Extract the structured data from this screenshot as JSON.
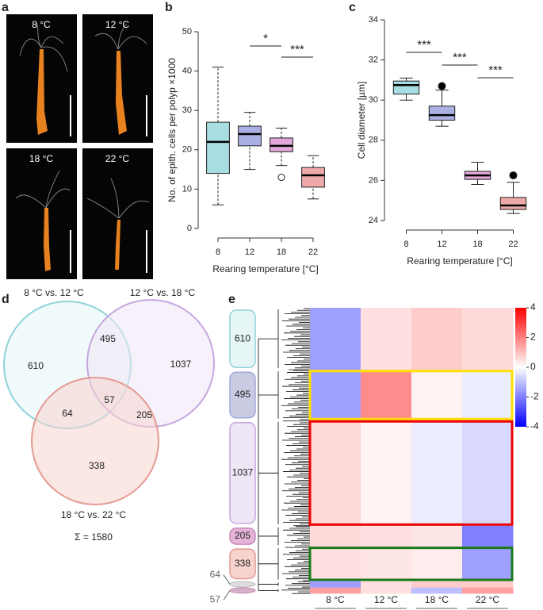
{
  "panels": [
    "a",
    "b",
    "c",
    "d",
    "e"
  ],
  "photos": [
    "8 °C",
    "12 °C",
    "18 °C",
    "22 °C"
  ],
  "chart_data": [
    {
      "type": "box",
      "categories": [
        "8",
        "12",
        "18",
        "22"
      ],
      "boxes": [
        {
          "low": 6,
          "q1": 14,
          "median": 22,
          "q3": 27,
          "high": 41,
          "outliers": []
        },
        {
          "low": 15,
          "q1": 21,
          "median": 24,
          "q3": 26,
          "high": 29.5,
          "outliers": []
        },
        {
          "low": 16,
          "q1": 19.5,
          "median": 21,
          "q3": 23,
          "high": 25.5,
          "outliers": [
            13
          ]
        },
        {
          "low": 7.5,
          "q1": 10.5,
          "median": 13.5,
          "q3": 15.5,
          "high": 18.5,
          "outliers": []
        }
      ],
      "colors": [
        "#a8dde2",
        "#aab0e2",
        "#e2a8da",
        "#eeaaaa"
      ],
      "whisker_style": "dashed",
      "outlier_style": "open",
      "ylim": [
        0,
        50
      ],
      "yticks": [
        0,
        10,
        20,
        30,
        40,
        50
      ],
      "ylabel": "No. of epith. cells per polyp ×1000",
      "xlabel": "Rearing temperature [°C]",
      "annotations": [
        "*",
        "***"
      ]
    },
    {
      "type": "box",
      "categories": [
        "8",
        "12",
        "18",
        "22"
      ],
      "boxes": [
        {
          "low": 30.0,
          "q1": 30.3,
          "median": 30.75,
          "q3": 30.95,
          "high": 31.1,
          "outliers": []
        },
        {
          "low": 28.7,
          "q1": 29.0,
          "median": 29.25,
          "q3": 29.7,
          "high": 30.5,
          "outliers": [
            30.7
          ]
        },
        {
          "low": 25.8,
          "q1": 26.05,
          "median": 26.25,
          "q3": 26.45,
          "high": 26.9,
          "outliers": []
        },
        {
          "low": 24.35,
          "q1": 24.55,
          "median": 24.75,
          "q3": 25.15,
          "high": 25.9,
          "outliers": [
            26.25
          ]
        }
      ],
      "colors": [
        "#a8dde2",
        "#aab0e2",
        "#e2a8da",
        "#eeaaaa"
      ],
      "whisker_style": "solid",
      "outlier_style": "filled",
      "ylim": [
        24,
        34
      ],
      "yticks": [
        24,
        26,
        28,
        30,
        32,
        34
      ],
      "ylabel": "Cell diameter [µm]",
      "xlabel": "Rearing temperature [°C]",
      "annotations": [
        "***",
        "***",
        "***"
      ]
    },
    {
      "type": "heatmap",
      "rows": [
        "610",
        "495",
        "1037",
        "205",
        "338",
        "64",
        "57"
      ],
      "columns": [
        "8 °C",
        "12 °C",
        "18 °C",
        "22 °C"
      ],
      "values": [
        [
          -1.5,
          0.5,
          0.8,
          0.6
        ],
        [
          -1.5,
          1.8,
          0.2,
          -0.3
        ],
        [
          0.6,
          0.2,
          -0.3,
          -0.6
        ],
        [
          0.6,
          0.5,
          0.4,
          -2
        ],
        [
          0.5,
          0.4,
          0.3,
          -1.5
        ],
        [
          -1.5,
          0.5,
          0.8,
          0.8
        ],
        [
          1.5,
          0.5,
          -1,
          1.5
        ]
      ],
      "clim": [
        -4,
        4
      ],
      "colorbar_ticks": [
        4,
        2,
        0,
        -2,
        -4
      ],
      "low_color": "#0000ff",
      "mid_color": "#ffffff",
      "high_color": "#ff0000"
    }
  ],
  "venn": {
    "sets": [
      "8 °C vs. 12 °C",
      "12 °C vs. 18 °C",
      "18 °C vs. 22 °C"
    ],
    "counts": {
      "a": "610",
      "ab": "495",
      "b": "1037",
      "abc": "57",
      "ac": "64",
      "bc": "205",
      "c": "338"
    },
    "total": "Σ = 1580"
  }
}
